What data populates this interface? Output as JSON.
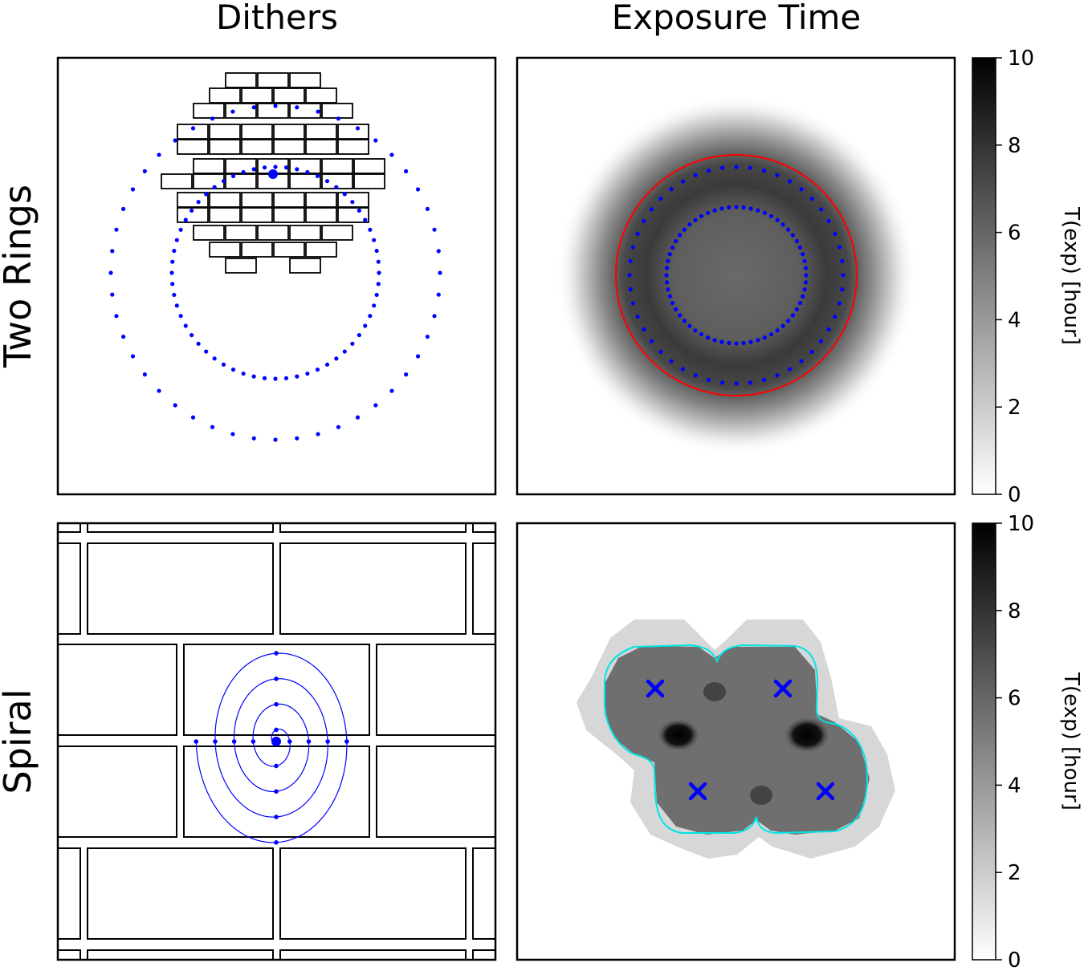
{
  "figure": {
    "column_titles": [
      "Dithers",
      "Exposure Time"
    ],
    "row_titles": [
      "Two Rings",
      "Spiral"
    ]
  },
  "colors": {
    "dither_points": "#0000ff",
    "footprint_circle": "#ff0000",
    "footprint_outline": "#00e5e5",
    "exposure_cmap_low": "#ffffff",
    "exposure_cmap_high": "#000000"
  },
  "chart_data": [
    {
      "panel": "Two Rings / Dithers",
      "type": "scatter",
      "description_series": [
        {
          "name": "outer_ring",
          "count": 48,
          "center": [
            0.0,
            -0.1
          ],
          "radius": 0.8
        },
        {
          "name": "inner_ring",
          "count": 60,
          "center": [
            0.0,
            0.0
          ],
          "radius": 0.48
        }
      ],
      "focal_plane_outline": "rectangular CCD array",
      "axes_visible": false
    },
    {
      "panel": "Two Rings / Exposure Time",
      "type": "heatmap",
      "colorbar": {
        "label": "T(exp) [hour]",
        "min": 0,
        "max": 10,
        "ticks": [
          "0",
          "2",
          "4",
          "6",
          "8",
          "10"
        ]
      },
      "overlays": [
        "outer_ring_points",
        "inner_ring_points",
        "footprint_circle"
      ],
      "axes_visible": false
    },
    {
      "panel": "Spiral / Dithers",
      "type": "scatter",
      "series": [
        {
          "name": "spiral_points",
          "count": 16
        }
      ],
      "spiral_turns": 4,
      "axes_visible": false
    },
    {
      "panel": "Spiral / Exposure Time",
      "type": "heatmap",
      "colorbar": {
        "label": "T(exp) [hour]",
        "min": 0,
        "max": 10,
        "ticks": [
          "0",
          "2",
          "4",
          "6",
          "8",
          "10"
        ]
      },
      "markers": [
        {
          "symbol": "x",
          "position": "upper-left"
        },
        {
          "symbol": "x",
          "position": "upper-right"
        },
        {
          "symbol": "x",
          "position": "lower-left"
        },
        {
          "symbol": "x",
          "position": "lower-right"
        }
      ],
      "axes_visible": false
    }
  ]
}
